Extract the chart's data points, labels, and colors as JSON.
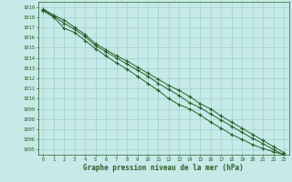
{
  "title": "",
  "xlabel": "Graphe pression niveau de la mer (hPa)",
  "bg_color": "#c5eae7",
  "grid_color": "#a0d0cc",
  "line_color": "#2a5e2a",
  "text_color": "#2a5e2a",
  "xlim": [
    -0.5,
    23.5
  ],
  "ylim": [
    1004.5,
    1019.5
  ],
  "xticks": [
    0,
    1,
    2,
    3,
    4,
    5,
    6,
    7,
    8,
    9,
    10,
    11,
    12,
    13,
    14,
    15,
    16,
    17,
    18,
    19,
    20,
    21,
    22,
    23
  ],
  "yticks": [
    1005,
    1006,
    1007,
    1008,
    1009,
    1010,
    1011,
    1012,
    1013,
    1014,
    1015,
    1016,
    1017,
    1018,
    1019
  ],
  "line1": [
    1018.8,
    1018.2,
    1017.7,
    1017.0,
    1016.3,
    1015.4,
    1014.8,
    1014.2,
    1013.7,
    1013.1,
    1012.5,
    1011.9,
    1011.3,
    1010.8,
    1010.2,
    1009.5,
    1009.0,
    1008.3,
    1007.7,
    1007.1,
    1006.5,
    1005.9,
    1005.3,
    1004.7
  ],
  "line2": [
    1018.7,
    1018.1,
    1017.4,
    1016.8,
    1016.1,
    1015.2,
    1014.6,
    1014.0,
    1013.4,
    1012.8,
    1012.2,
    1011.5,
    1010.9,
    1010.3,
    1009.6,
    1009.1,
    1008.5,
    1007.9,
    1007.3,
    1006.7,
    1006.1,
    1005.6,
    1005.0,
    1004.5
  ],
  "line3": [
    1018.6,
    1018.0,
    1016.9,
    1016.5,
    1015.7,
    1014.9,
    1014.2,
    1013.5,
    1012.9,
    1012.2,
    1011.5,
    1010.8,
    1010.0,
    1009.4,
    1009.0,
    1008.4,
    1007.7,
    1007.1,
    1006.5,
    1006.0,
    1005.5,
    1005.1,
    1004.8,
    1004.5
  ]
}
